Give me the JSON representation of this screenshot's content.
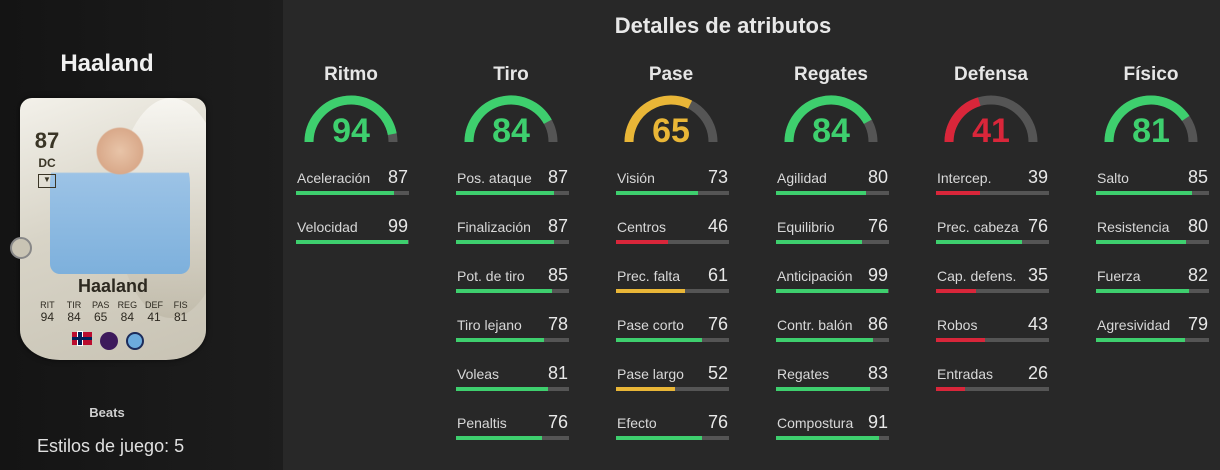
{
  "player": {
    "name": "Haaland",
    "playstyle_name": "Beats",
    "playstyles_label": "Estilos de juego: 5"
  },
  "card": {
    "rating": "87",
    "position": "DC",
    "name": "Haaland",
    "stats": [
      {
        "label": "RIT",
        "value": "94"
      },
      {
        "label": "TIR",
        "value": "84"
      },
      {
        "label": "PAS",
        "value": "65"
      },
      {
        "label": "REG",
        "value": "84"
      },
      {
        "label": "DEF",
        "value": "41"
      },
      {
        "label": "FIS",
        "value": "81"
      }
    ]
  },
  "page_title": "Detalles de atributos",
  "colors": {
    "high": "#3ecf6e",
    "mid": "#e9b637",
    "low": "#d9263a",
    "track": "#555555"
  },
  "categories": [
    {
      "name": "Ritmo",
      "value": 94,
      "attrs": [
        {
          "name": "Aceleración",
          "value": 87
        },
        {
          "name": "Velocidad",
          "value": 99
        }
      ]
    },
    {
      "name": "Tiro",
      "value": 84,
      "attrs": [
        {
          "name": "Pos. ataque",
          "value": 87
        },
        {
          "name": "Finalización",
          "value": 87
        },
        {
          "name": "Pot. de tiro",
          "value": 85
        },
        {
          "name": "Tiro lejano",
          "value": 78
        },
        {
          "name": "Voleas",
          "value": 81
        },
        {
          "name": "Penaltis",
          "value": 76
        }
      ]
    },
    {
      "name": "Pase",
      "value": 65,
      "attrs": [
        {
          "name": "Visión",
          "value": 73
        },
        {
          "name": "Centros",
          "value": 46
        },
        {
          "name": "Prec. falta",
          "value": 61
        },
        {
          "name": "Pase corto",
          "value": 76
        },
        {
          "name": "Pase largo",
          "value": 52
        },
        {
          "name": "Efecto",
          "value": 76
        }
      ]
    },
    {
      "name": "Regates",
      "value": 84,
      "attrs": [
        {
          "name": "Agilidad",
          "value": 80
        },
        {
          "name": "Equilibrio",
          "value": 76
        },
        {
          "name": "Anticipación",
          "value": 99
        },
        {
          "name": "Contr. balón",
          "value": 86
        },
        {
          "name": "Regates",
          "value": 83
        },
        {
          "name": "Compostura",
          "value": 91
        }
      ]
    },
    {
      "name": "Defensa",
      "value": 41,
      "attrs": [
        {
          "name": "Intercep.",
          "value": 39
        },
        {
          "name": "Prec. cabeza",
          "value": 76
        },
        {
          "name": "Cap. defens.",
          "value": 35
        },
        {
          "name": "Robos",
          "value": 43
        },
        {
          "name": "Entradas",
          "value": 26
        }
      ]
    },
    {
      "name": "Físico",
      "value": 81,
      "attrs": [
        {
          "name": "Salto",
          "value": 85
        },
        {
          "name": "Resistencia",
          "value": 80
        },
        {
          "name": "Fuerza",
          "value": 82
        },
        {
          "name": "Agresividad",
          "value": 79
        }
      ]
    }
  ]
}
